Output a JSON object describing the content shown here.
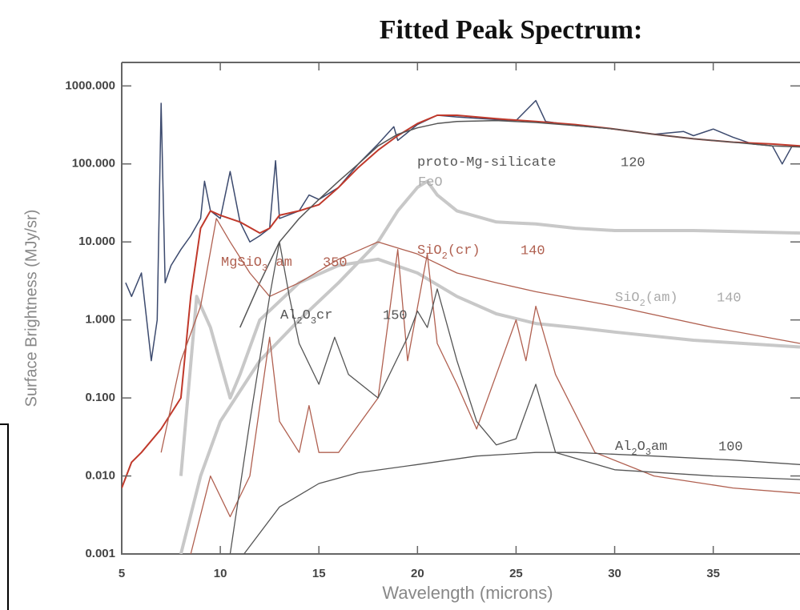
{
  "chart_data": {
    "type": "line",
    "title": "Fitted Peak Spectrum:",
    "x_label": "Wavelength (microns)",
    "y_label": "Surface Brightness (MJy/sr)",
    "yscale": "log",
    "xlim": [
      5,
      39.4
    ],
    "ylim": [
      0.001,
      2000
    ],
    "xticks": [
      5,
      10,
      15,
      20,
      25,
      30,
      35
    ],
    "yticks": [
      {
        "value": 0.001,
        "label": "0.001"
      },
      {
        "value": 0.01,
        "label": "0.010"
      },
      {
        "value": 0.1,
        "label": "0.100"
      },
      {
        "value": 1,
        "label": "1.000"
      },
      {
        "value": 10,
        "label": "10.000"
      },
      {
        "value": 100,
        "label": "100.000"
      },
      {
        "value": 1000,
        "label": "1000.000"
      }
    ],
    "series": [
      {
        "color": "#3c4a6e",
        "width": 1.5,
        "x": [
          5.2,
          5.5,
          6,
          6.5,
          6.8,
          7,
          7.2,
          7.5,
          8,
          8.5,
          9,
          9.2,
          9.5,
          10,
          10.5,
          11,
          11.5,
          12,
          12.5,
          12.8,
          13,
          14,
          14.5,
          15,
          16,
          17,
          18,
          18.8,
          19,
          20,
          21,
          22,
          24,
          25,
          26,
          26.5,
          28,
          30,
          32,
          33.5,
          34,
          35,
          36,
          37,
          38,
          38.5,
          39,
          39.4
        ],
        "values": [
          3,
          2,
          4,
          0.3,
          1,
          600,
          3,
          5,
          8,
          12,
          20,
          60,
          25,
          20,
          80,
          18,
          10,
          12,
          15,
          110,
          20,
          25,
          40,
          35,
          50,
          100,
          180,
          300,
          200,
          320,
          420,
          400,
          370,
          360,
          650,
          350,
          310,
          280,
          240,
          260,
          230,
          280,
          220,
          180,
          170,
          100,
          170,
          170
        ]
      },
      {
        "color": "#c0392b",
        "width": 2,
        "x": [
          5,
          5.5,
          6,
          7,
          8,
          8.5,
          9,
          9.5,
          10,
          11,
          12,
          12.5,
          13,
          14,
          15,
          16,
          17,
          18,
          19,
          20,
          21,
          22,
          24,
          26,
          28,
          30,
          32,
          34,
          36,
          38,
          39.4
        ],
        "values": [
          0.007,
          0.015,
          0.02,
          0.04,
          0.1,
          2,
          15,
          25,
          22,
          18,
          13,
          15,
          22,
          25,
          30,
          50,
          90,
          150,
          230,
          330,
          420,
          420,
          380,
          350,
          320,
          280,
          240,
          210,
          190,
          180,
          170
        ]
      },
      {
        "name": "proto-Mg-silicate",
        "temp": "120",
        "color": "#555555",
        "width": 1.5,
        "x": [
          11,
          12,
          13,
          14,
          15,
          16,
          17,
          18,
          19,
          20,
          21,
          22,
          24,
          26,
          28,
          30,
          32,
          34,
          36,
          38,
          39.4
        ],
        "values": [
          0.8,
          3,
          10,
          20,
          35,
          60,
          100,
          170,
          240,
          290,
          330,
          350,
          360,
          340,
          310,
          280,
          240,
          210,
          190,
          170,
          165
        ]
      },
      {
        "name": "FeO",
        "color": "#c8c8c8",
        "width": 4,
        "x": [
          8,
          9,
          10,
          12,
          14,
          16,
          18,
          19,
          20,
          20.5,
          21,
          22,
          24,
          26,
          28,
          30,
          34,
          39.4
        ],
        "values": [
          0.001,
          0.01,
          0.05,
          0.3,
          1,
          3,
          10,
          25,
          50,
          60,
          40,
          25,
          18,
          17,
          15,
          14,
          14,
          13
        ]
      },
      {
        "name": "SiO2(am)",
        "temp": "140",
        "color": "#c8c8c8",
        "width": 4,
        "x": [
          8,
          8.8,
          9.5,
          10.5,
          11,
          12,
          14,
          16,
          18,
          20,
          22,
          24,
          26,
          28,
          30,
          34,
          39.4
        ],
        "values": [
          0.01,
          2,
          0.8,
          0.1,
          0.2,
          1,
          3,
          5,
          6,
          4,
          2,
          1.2,
          0.9,
          0.8,
          0.7,
          0.55,
          0.45
        ]
      },
      {
        "name": "MgSiO3 am",
        "temp": "350",
        "color": "#b06050",
        "width": 1.3,
        "x": [
          7,
          8,
          9,
          9.8,
          10.5,
          11.5,
          12.5,
          14,
          16,
          18,
          20,
          22,
          24,
          26,
          30,
          35,
          39.4
        ],
        "values": [
          0.02,
          0.3,
          1.5,
          20,
          10,
          4,
          2,
          3,
          6,
          10,
          7,
          4,
          3,
          2.3,
          1.5,
          0.8,
          0.5
        ]
      },
      {
        "name": "SiO2(cr)",
        "temp": "140",
        "color": "#b06050",
        "width": 1.3,
        "x": [
          8.5,
          9.5,
          10.5,
          11.5,
          12.5,
          13,
          14,
          14.5,
          15,
          16,
          18,
          19,
          19.5,
          20.5,
          21,
          22,
          23,
          24,
          25,
          25.5,
          26,
          27,
          29,
          32,
          36,
          39.4
        ],
        "values": [
          0.001,
          0.01,
          0.003,
          0.01,
          0.6,
          0.05,
          0.02,
          0.08,
          0.02,
          0.02,
          0.1,
          8,
          0.3,
          7,
          0.5,
          0.15,
          0.04,
          0.2,
          1,
          0.3,
          1.5,
          0.2,
          0.02,
          0.01,
          0.007,
          0.006
        ]
      },
      {
        "name": "Al2O3cr",
        "temp": "150",
        "color": "#555555",
        "width": 1.3,
        "x": [
          10.5,
          11.5,
          12.5,
          13,
          13.5,
          14,
          15,
          15.8,
          16.5,
          18,
          19.5,
          20,
          20.5,
          21,
          22,
          23,
          24,
          25,
          26,
          27,
          30,
          35,
          39.4
        ],
        "values": [
          0.001,
          0.05,
          2,
          10,
          2,
          0.5,
          0.15,
          0.6,
          0.2,
          0.1,
          0.6,
          1.3,
          0.8,
          2.5,
          0.3,
          0.05,
          0.025,
          0.03,
          0.15,
          0.02,
          0.012,
          0.01,
          0.009
        ]
      },
      {
        "name": "Al2O3am",
        "temp": "100",
        "color": "#555555",
        "width": 1.3,
        "x": [
          11.2,
          13,
          15,
          17,
          20,
          23,
          26,
          28,
          32,
          36,
          39.4
        ],
        "values": [
          0.001,
          0.004,
          0.008,
          0.011,
          0.014,
          0.018,
          0.02,
          0.02,
          0.018,
          0.016,
          0.014
        ]
      }
    ]
  }
}
